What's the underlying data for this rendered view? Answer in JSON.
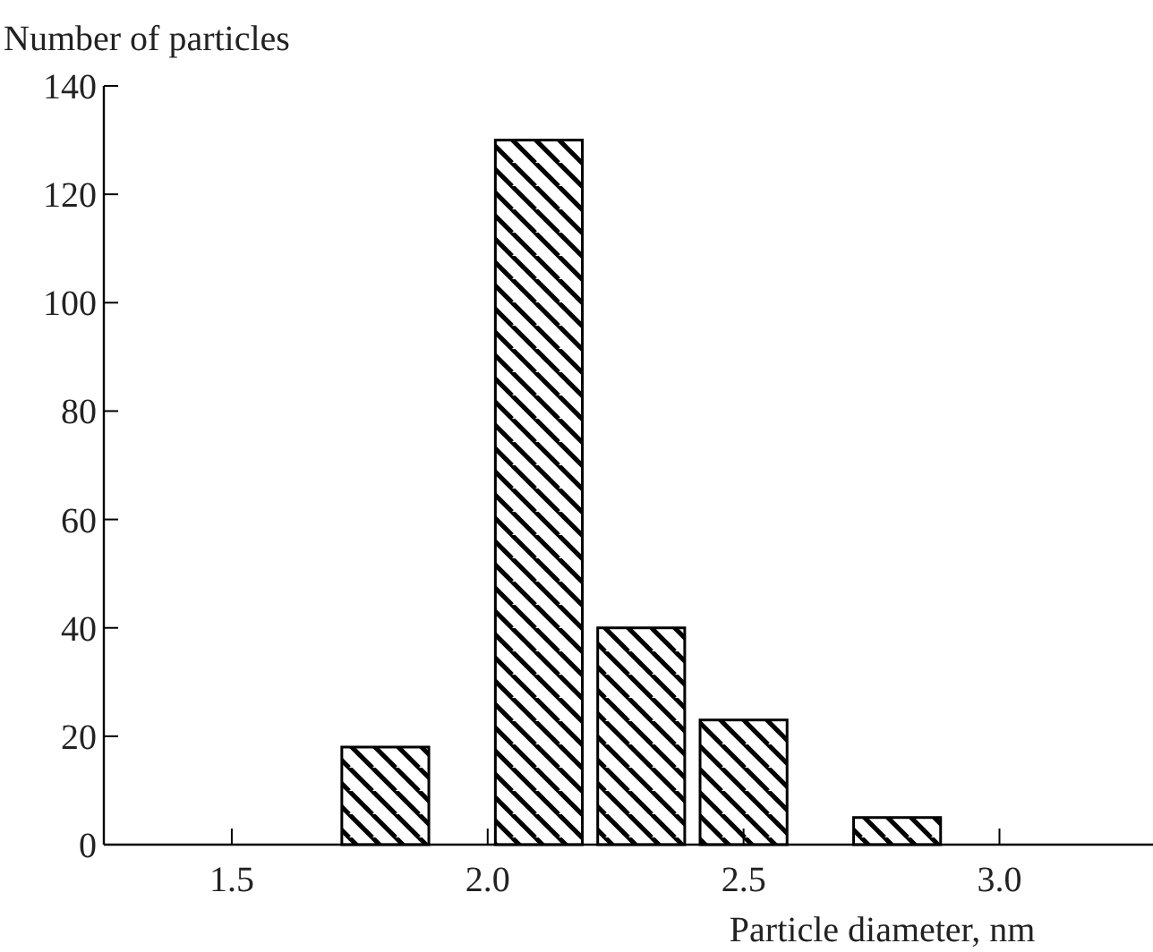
{
  "chart_data": {
    "type": "bar",
    "xlabel": "Particle diameter, nm",
    "ylabel": "Number of particles",
    "x": [
      1.8,
      2.1,
      2.3,
      2.5,
      2.8
    ],
    "values": [
      18,
      130,
      40,
      23,
      5
    ],
    "color": "#000000",
    "xlim": [
      1.25,
      3.3
    ],
    "xticks": [
      {
        "value": 1.5,
        "label": "1.5"
      },
      {
        "value": 2.0,
        "label": "2.0"
      },
      {
        "value": 2.5,
        "label": "2.5"
      },
      {
        "value": 3.0,
        "label": "3.0"
      }
    ],
    "ylim": [
      0,
      140
    ],
    "yticks": [
      0,
      20,
      40,
      60,
      80,
      100,
      120,
      140
    ],
    "grid": false
  }
}
